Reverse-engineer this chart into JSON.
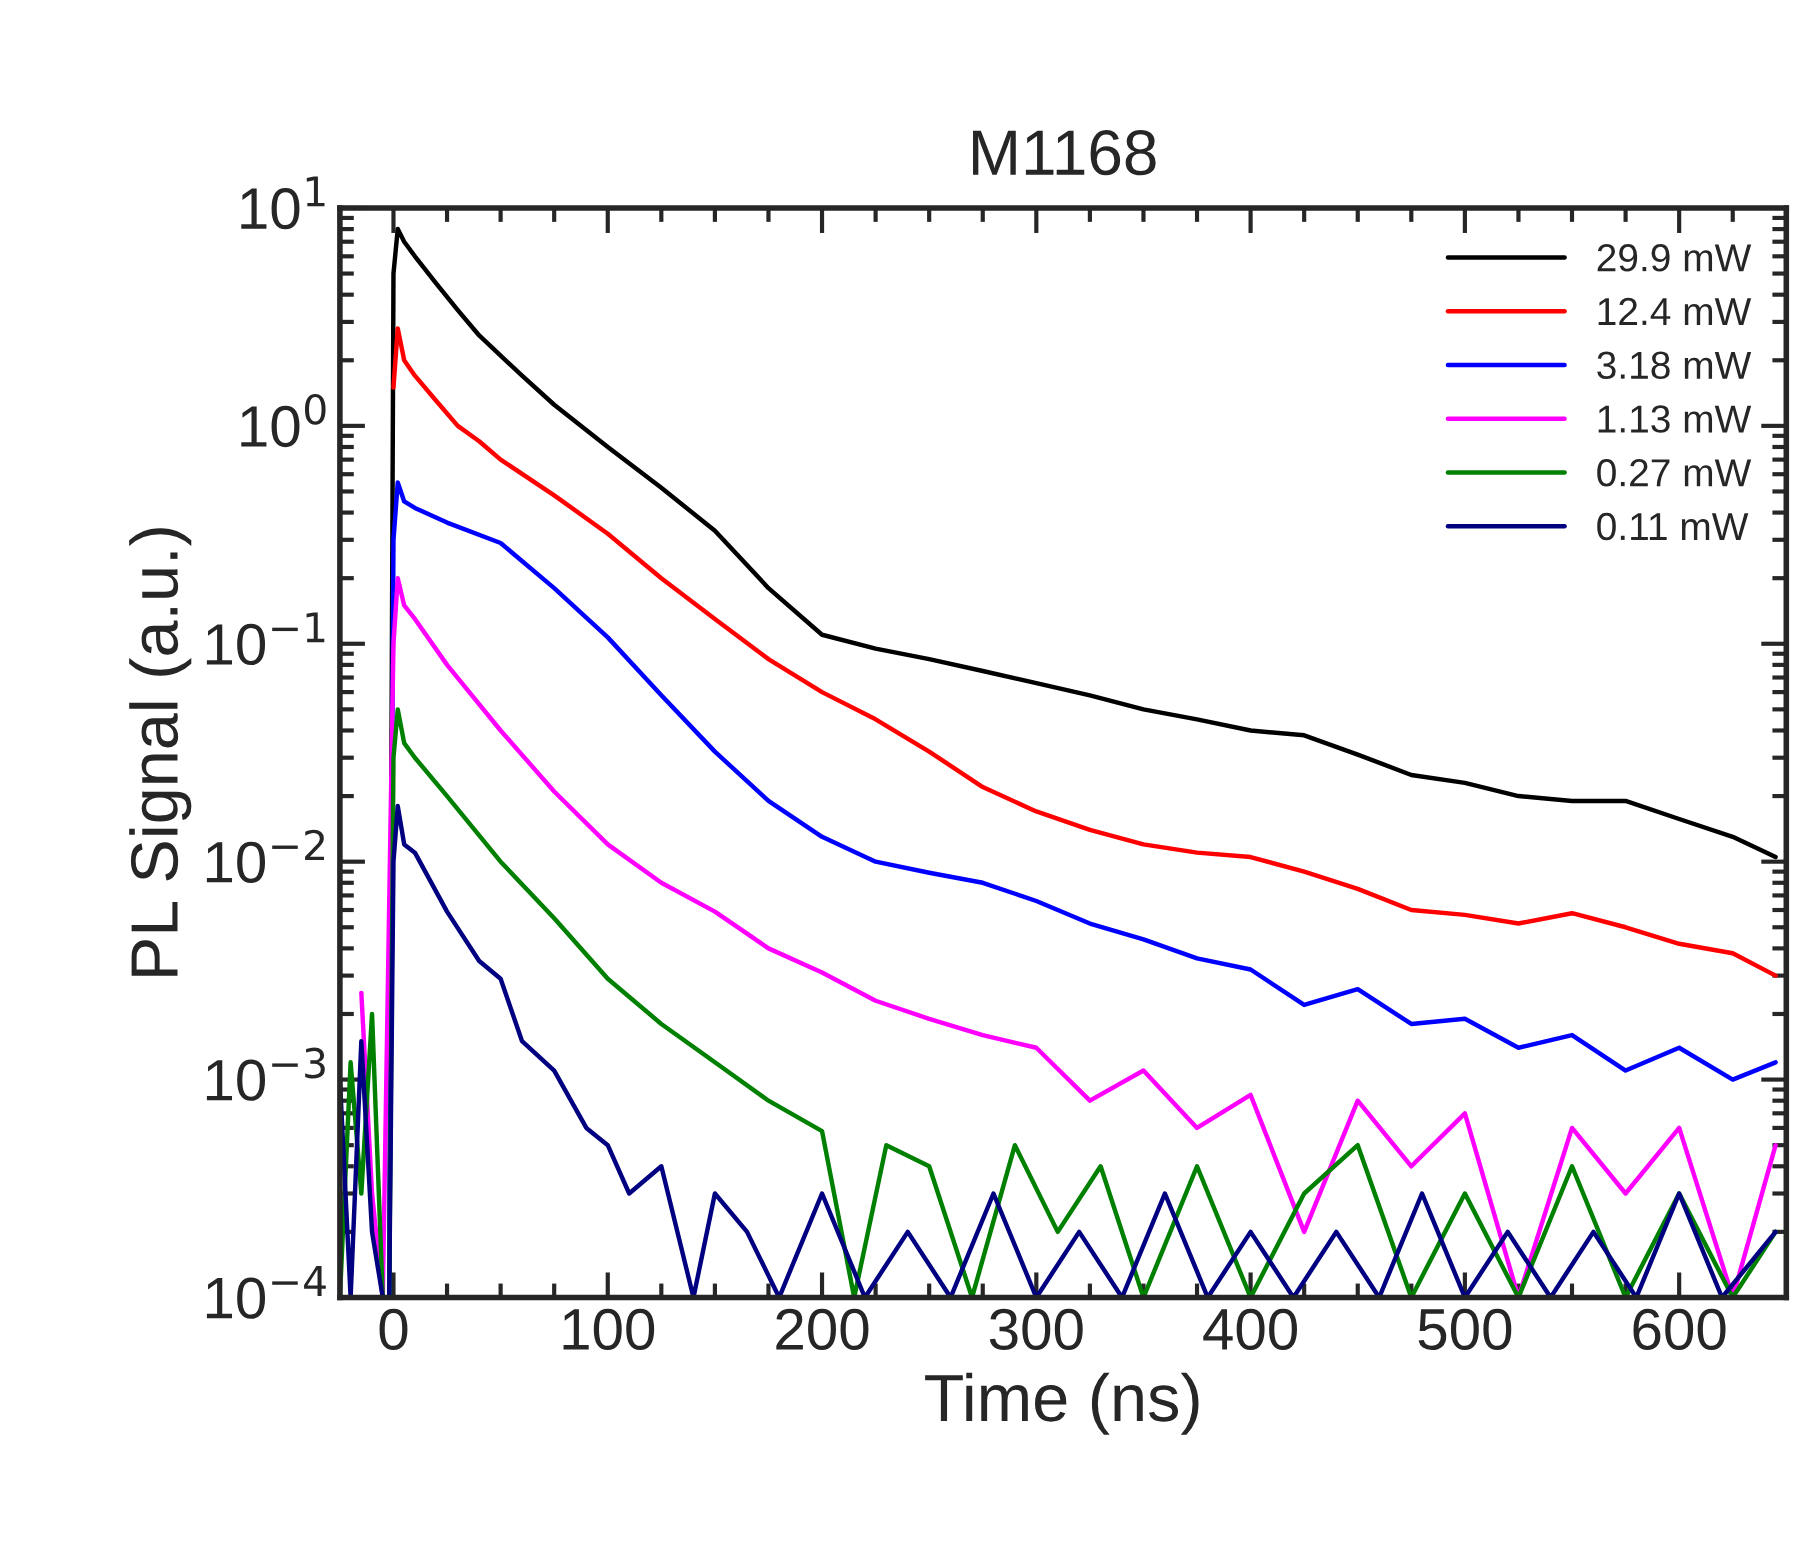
{
  "chart_data": {
    "type": "line",
    "title": "M1168",
    "xlabel": "Time (ns)",
    "ylabel": "PL Signal (a.u.)",
    "log": "y",
    "xlim": [
      -25,
      650
    ],
    "ylim": [
      0.0001,
      10
    ],
    "xticks": [
      0,
      100,
      200,
      300,
      400,
      500,
      600
    ],
    "yticks": [
      {
        "value": 0.0001,
        "label": "10$^{−4}$"
      },
      {
        "value": 0.001,
        "label": "10$^{−3}$"
      },
      {
        "value": 0.01,
        "label": "10$^{−2}$"
      },
      {
        "value": 0.1,
        "label": "10$^{−1}$"
      },
      {
        "value": 1,
        "label": "10$^{0}$"
      },
      {
        "value": 10,
        "label": "10$^{1}$"
      }
    ],
    "legend": "top right",
    "line_style": "solid",
    "series": [
      {
        "name": "29.9 mW",
        "color": "#000000",
        "x": [
          -2,
          0,
          2,
          5,
          10,
          20,
          30,
          40,
          50,
          60,
          75,
          100,
          125,
          150,
          175,
          200,
          225,
          250,
          275,
          300,
          325,
          350,
          375,
          400,
          425,
          450,
          475,
          500,
          525,
          550,
          575,
          600,
          625,
          645
        ],
        "values": [
          0.0001,
          5,
          8,
          7,
          6,
          4.5,
          3.4,
          2.6,
          2.1,
          1.7,
          1.25,
          0.8,
          0.52,
          0.33,
          0.18,
          0.11,
          0.095,
          0.085,
          0.075,
          0.066,
          0.058,
          0.05,
          0.045,
          0.04,
          0.038,
          0.031,
          0.025,
          0.023,
          0.02,
          0.019,
          0.019,
          0.0157,
          0.013,
          0.0105
        ]
      },
      {
        "name": "12.4 mW",
        "color": "#ff0000",
        "x": [
          0,
          2,
          5,
          10,
          20,
          30,
          40,
          50,
          75,
          100,
          125,
          150,
          175,
          200,
          225,
          250,
          275,
          300,
          325,
          350,
          375,
          400,
          425,
          450,
          475,
          500,
          525,
          550,
          575,
          600,
          625,
          645
        ],
        "values": [
          1.5,
          2.8,
          2.0,
          1.7,
          1.3,
          1.0,
          0.85,
          0.7,
          0.48,
          0.32,
          0.2,
          0.13,
          0.085,
          0.06,
          0.045,
          0.032,
          0.022,
          0.017,
          0.014,
          0.012,
          0.011,
          0.0105,
          0.009,
          0.0075,
          0.006,
          0.0057,
          0.0052,
          0.0058,
          0.005,
          0.0042,
          0.0038,
          0.003
        ]
      },
      {
        "name": "3.18 mW",
        "color": "#0000ff",
        "x": [
          -2,
          0,
          2,
          5,
          10,
          25,
          50,
          75,
          100,
          125,
          150,
          175,
          200,
          225,
          250,
          275,
          300,
          325,
          350,
          375,
          400,
          425,
          450,
          475,
          500,
          525,
          550,
          575,
          600,
          625,
          645
        ],
        "values": [
          0.0001,
          0.3,
          0.55,
          0.45,
          0.42,
          0.36,
          0.29,
          0.18,
          0.107,
          0.058,
          0.032,
          0.019,
          0.013,
          0.01,
          0.0089,
          0.008,
          0.0066,
          0.0052,
          0.0044,
          0.0036,
          0.0032,
          0.0022,
          0.0026,
          0.0018,
          0.0019,
          0.0014,
          0.0016,
          0.0011,
          0.0014,
          0.001,
          0.0012
        ]
      },
      {
        "name": "1.13 mW",
        "color": "#ff00ff",
        "x": [
          -15,
          -10,
          -5,
          0,
          2,
          5,
          10,
          25,
          50,
          75,
          100,
          125,
          150,
          175,
          200,
          225,
          250,
          275,
          300,
          325,
          350,
          375,
          400,
          425,
          450,
          475,
          500,
          525,
          550,
          575,
          600,
          625,
          645
        ],
        "values": [
          0.0025,
          0.0003,
          0.0001,
          0.1,
          0.2,
          0.15,
          0.13,
          0.08,
          0.04,
          0.021,
          0.012,
          0.008,
          0.0059,
          0.004,
          0.0031,
          0.0023,
          0.0019,
          0.0016,
          0.0014,
          0.0008,
          0.0011,
          0.0006,
          0.00085,
          0.0002,
          0.0008,
          0.0004,
          0.0007,
          0.0001,
          0.0006,
          0.0003,
          0.0006,
          0.0001,
          0.0005
        ]
      },
      {
        "name": "0.27 mW",
        "color": "#008000",
        "x": [
          -25,
          -20,
          -15,
          -10,
          -5,
          -2,
          0,
          2,
          5,
          10,
          25,
          50,
          75,
          100,
          125,
          150,
          175,
          200,
          215,
          230,
          250,
          270,
          290,
          310,
          330,
          350,
          375,
          400,
          425,
          450,
          475,
          500,
          525,
          550,
          575,
          600,
          625,
          645
        ],
        "values": [
          0.0001,
          0.0012,
          0.0003,
          0.002,
          0.0001,
          0.0001,
          0.03,
          0.05,
          0.035,
          0.03,
          0.02,
          0.01,
          0.0055,
          0.0029,
          0.0018,
          0.0012,
          0.0008,
          0.00058,
          0.0001,
          0.0005,
          0.0004,
          0.0001,
          0.0005,
          0.0002,
          0.0004,
          0.0001,
          0.0004,
          0.0001,
          0.0003,
          0.0005,
          0.0001,
          0.0003,
          0.0001,
          0.0004,
          0.0001,
          0.0003,
          0.0001,
          0.0002
        ]
      },
      {
        "name": "0.11 mW",
        "color": "#000080",
        "x": [
          -25,
          -20,
          -15,
          -10,
          -5,
          -2,
          0,
          2,
          5,
          10,
          25,
          40,
          50,
          60,
          75,
          90,
          100,
          110,
          125,
          140,
          150,
          165,
          180,
          200,
          220,
          240,
          260,
          280,
          300,
          320,
          340,
          360,
          380,
          400,
          420,
          440,
          460,
          480,
          500,
          520,
          540,
          560,
          580,
          600,
          620,
          645
        ],
        "values": [
          0.001,
          0.0001,
          0.0015,
          0.0002,
          0.0001,
          0.0001,
          0.01,
          0.018,
          0.012,
          0.011,
          0.0059,
          0.0035,
          0.0029,
          0.0015,
          0.0011,
          0.0006,
          0.0005,
          0.0003,
          0.0004,
          0.0001,
          0.0003,
          0.0002,
          0.0001,
          0.0003,
          0.0001,
          0.0002,
          0.0001,
          0.0003,
          0.0001,
          0.0002,
          0.0001,
          0.0003,
          0.0001,
          0.0002,
          0.0001,
          0.0002,
          0.0001,
          0.0003,
          0.0001,
          0.0002,
          0.0001,
          0.0002,
          0.0001,
          0.0003,
          0.0001,
          0.0002
        ]
      }
    ]
  }
}
